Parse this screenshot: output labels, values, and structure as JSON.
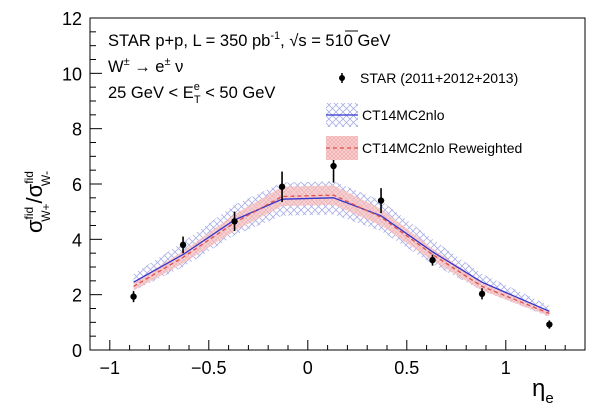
{
  "chart_data": {
    "type": "scatter",
    "annotations": {
      "line1_main": "STAR p+p, L = 350 pb",
      "line1_sup": "-1",
      "line1_sep": ", ",
      "line1_sqrt": "√s",
      "line1_end": " = 510 GeV",
      "line2_main": "W",
      "line2_sup": "±",
      "line2_arrow": " → e",
      "line2_sup2": "±",
      "line2_end": " ν",
      "line3_start": "25 GeV < E",
      "line3_sup": "e",
      "line3_sub": "T",
      "line3_end": " < 50 GeV"
    },
    "xlabel": {
      "main": "η",
      "sub": "e"
    },
    "ylabel": {
      "num": "σ",
      "num_sup": "fid",
      "num_sub": "W+",
      "slash": "/",
      "den": "σ",
      "den_sup": "fid",
      "den_sub": "W-"
    },
    "xlim": [
      -1.1,
      1.4
    ],
    "ylim": [
      0,
      12
    ],
    "xticks": [
      -1,
      -0.5,
      0,
      0.5,
      1
    ],
    "xtick_labels": [
      "−1",
      "−0.5",
      "0",
      "0.5",
      "1"
    ],
    "yticks": [
      0,
      2,
      4,
      6,
      8,
      10,
      12
    ],
    "ytick_labels": [
      "0",
      "2",
      "4",
      "6",
      "8",
      "10",
      "12"
    ],
    "legend_position": "top-right",
    "series": [
      {
        "name": "STAR (2011+2012+2013)",
        "kind": "points",
        "color": "#000000",
        "x": [
          -0.88,
          -0.63,
          -0.37,
          -0.13,
          0.13,
          0.37,
          0.63,
          0.88,
          1.22
        ],
        "y": [
          1.93,
          3.8,
          4.65,
          5.9,
          6.65,
          5.4,
          3.25,
          2.03,
          0.92
        ],
        "err": [
          0.2,
          0.3,
          0.35,
          0.55,
          0.6,
          0.45,
          0.2,
          0.2,
          0.15
        ]
      },
      {
        "name": "CT14MC2nlo",
        "kind": "band",
        "color": "#3333cc",
        "band_color": "#aab0e8",
        "x": [
          -0.88,
          -0.63,
          -0.37,
          -0.13,
          0.13,
          0.37,
          0.63,
          0.88,
          1.22
        ],
        "y": [
          2.45,
          3.45,
          4.7,
          5.45,
          5.5,
          4.85,
          3.55,
          2.45,
          1.4
        ],
        "err": [
          0.3,
          0.45,
          0.55,
          0.6,
          0.6,
          0.55,
          0.45,
          0.3,
          0.2
        ]
      },
      {
        "name": "CT14MC2nlo Reweighted",
        "kind": "band",
        "color": "#e05050",
        "band_color": "#f7c2c2",
        "x": [
          -0.88,
          -0.63,
          -0.37,
          -0.13,
          0.13,
          0.37,
          0.63,
          0.88,
          1.22
        ],
        "y": [
          2.3,
          3.35,
          4.6,
          5.55,
          5.6,
          4.8,
          3.45,
          2.3,
          1.32
        ],
        "err": [
          0.15,
          0.22,
          0.3,
          0.35,
          0.35,
          0.3,
          0.22,
          0.15,
          0.1
        ]
      }
    ]
  }
}
